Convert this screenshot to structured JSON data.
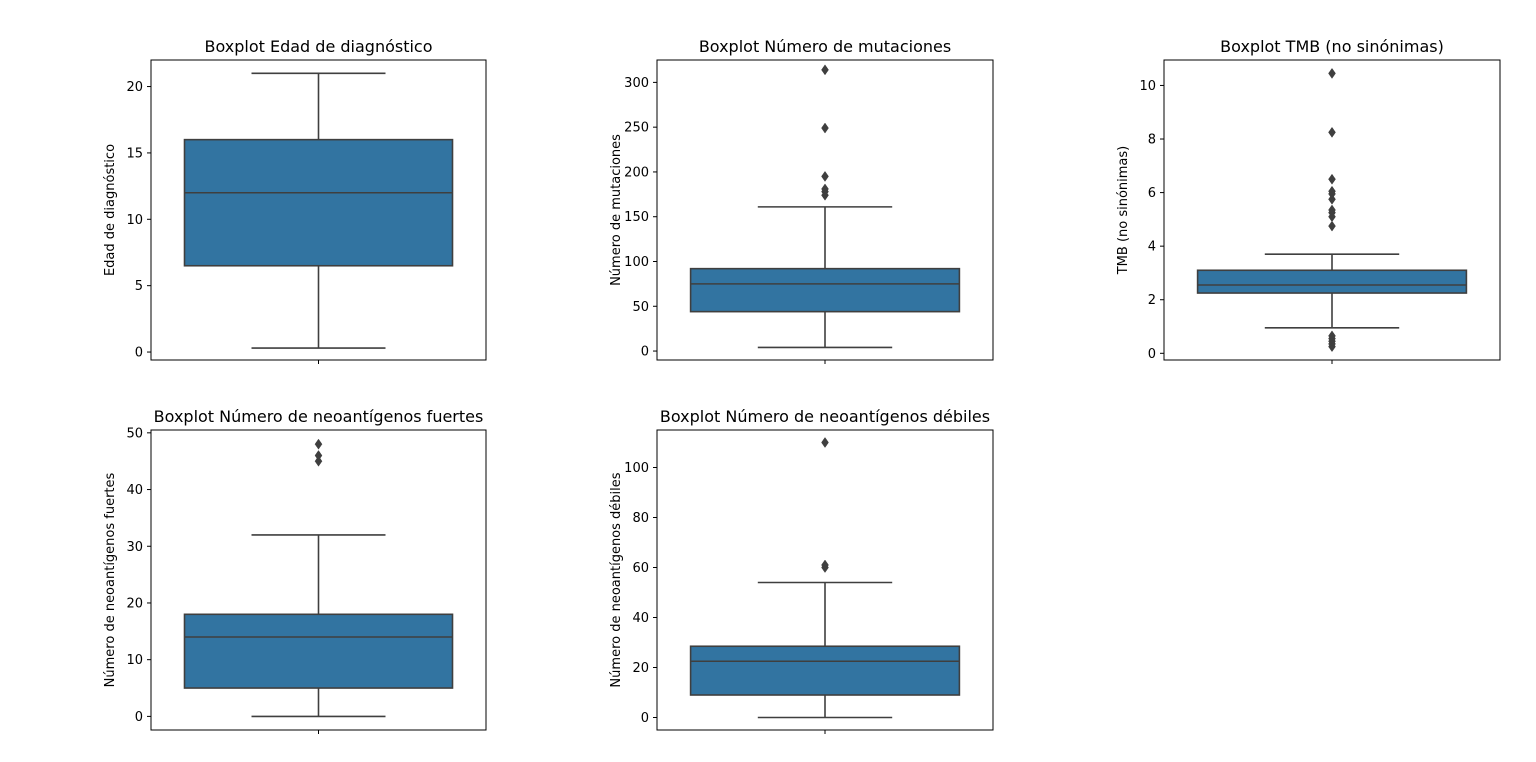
{
  "chart_data": [
    {
      "type": "box",
      "title": "Boxplot Edad de diagnóstico",
      "ylabel": "Edad de diagnóstico",
      "ylim": [
        -0.6,
        22.0
      ],
      "yticks": [
        0,
        5,
        10,
        15,
        20
      ],
      "box_color": "#3274a1",
      "stats": {
        "whisker_low": 0.3,
        "q1": 6.5,
        "median": 12.0,
        "q3": 16.0,
        "whisker_high": 21.0
      },
      "outliers": []
    },
    {
      "type": "box",
      "title": "Boxplot Número de mutaciones",
      "ylabel": "Número de mutaciones",
      "ylim": [
        -10,
        325
      ],
      "yticks": [
        0,
        50,
        100,
        150,
        200,
        250,
        300
      ],
      "box_color": "#3274a1",
      "stats": {
        "whisker_low": 4,
        "q1": 44,
        "median": 75,
        "q3": 92,
        "whisker_high": 161
      },
      "outliers": [
        174,
        178,
        181,
        195,
        249,
        314
      ]
    },
    {
      "type": "box",
      "title": "Boxplot TMB (no sinónimas)",
      "ylabel": "TMB (no sinónimas)",
      "ylim": [
        -0.25,
        10.95
      ],
      "yticks": [
        0,
        2,
        4,
        6,
        8,
        10
      ],
      "box_color": "#3274a1",
      "stats": {
        "whisker_low": 0.95,
        "q1": 2.25,
        "median": 2.55,
        "q3": 3.1,
        "whisker_high": 3.7
      },
      "outliers": [
        0.25,
        0.35,
        0.45,
        0.55,
        0.65,
        4.75,
        5.1,
        5.25,
        5.35,
        5.75,
        5.95,
        6.05,
        6.5,
        8.25,
        10.45
      ]
    },
    {
      "type": "box",
      "title": "Boxplot Número de neoantígenos fuertes",
      "ylabel": "Número de neoantígenos fuertes",
      "ylim": [
        -2.4,
        50.5
      ],
      "yticks": [
        0,
        10,
        20,
        30,
        40,
        50
      ],
      "box_color": "#3274a1",
      "stats": {
        "whisker_low": 0,
        "q1": 5,
        "median": 14,
        "q3": 18,
        "whisker_high": 32
      },
      "outliers": [
        45,
        46,
        48
      ]
    },
    {
      "type": "box",
      "title": "Boxplot Número de neoantígenos débiles",
      "ylabel": "Número de neoantígenos débiles",
      "ylim": [
        -5,
        115
      ],
      "yticks": [
        0,
        20,
        40,
        60,
        80,
        100
      ],
      "box_color": "#3274a1",
      "stats": {
        "whisker_low": 0,
        "q1": 9,
        "median": 22.5,
        "q3": 28.5,
        "whisker_high": 54
      },
      "outliers": [
        60,
        61,
        110
      ]
    }
  ]
}
